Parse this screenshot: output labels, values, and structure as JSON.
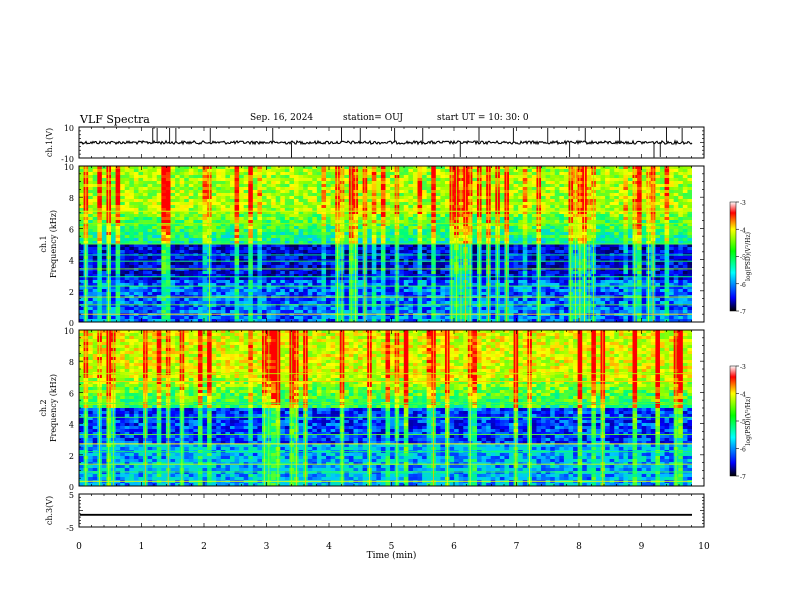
{
  "header": {
    "title": "VLF Spectra",
    "date": "Sep. 16, 2024",
    "station": "station= OUJ",
    "start_ut": "start  UT =   10: 30: 0"
  },
  "chart_data": [
    {
      "type": "line",
      "panel": "ch1-waveform",
      "ylabel": "ch.1(V)",
      "ylim": [
        -10,
        10
      ],
      "ytick_labels": [
        "10",
        "-10"
      ],
      "baseline": 0,
      "spike_times_min": [
        1.18,
        1.25,
        1.45,
        1.55,
        2.1,
        3.1,
        3.4,
        4.2,
        4.5,
        5.05,
        5.5,
        6.1,
        6.4,
        6.95,
        7.5,
        7.85,
        8.1,
        8.65,
        9.2,
        9.3,
        9.4,
        9.65
      ]
    },
    {
      "type": "heatmap",
      "panel": "ch1-spectrogram",
      "ylabel": "ch.1\nFrequency (kHz)",
      "xlim": [
        0,
        10
      ],
      "ylim": [
        0,
        10
      ],
      "ytick_labels": [
        "0",
        "2",
        "4",
        "6",
        "8",
        "10"
      ],
      "colorbar": {
        "label": "log(PSD)(V²/Hz)",
        "range": [
          -7,
          -3
        ],
        "tick_labels": [
          "-3",
          "-4",
          "-5",
          "-6",
          "-7"
        ]
      }
    },
    {
      "type": "heatmap",
      "panel": "ch2-spectrogram",
      "ylabel": "ch.2\nFrequency (kHz)",
      "xlim": [
        0,
        10
      ],
      "ylim": [
        0,
        10
      ],
      "ytick_labels": [
        "0",
        "2",
        "4",
        "6",
        "8",
        "10"
      ],
      "colorbar": {
        "label": "log(PSD)(V²/Hz)",
        "range": [
          -7,
          -3
        ],
        "tick_labels": [
          "-3",
          "-4",
          "-5",
          "-6",
          "-7"
        ]
      }
    },
    {
      "type": "line",
      "panel": "ch3-waveform",
      "ylabel": "ch.3(V)",
      "ylim": [
        -5,
        5
      ],
      "ytick_labels": [
        "5",
        "-5"
      ],
      "values": [
        -1.3,
        -1.3
      ]
    }
  ],
  "xaxis": {
    "label": "Time (min)",
    "range": [
      0,
      10
    ],
    "tick_labels": [
      "0",
      "1",
      "2",
      "3",
      "4",
      "5",
      "6",
      "7",
      "8",
      "9",
      "10"
    ]
  }
}
